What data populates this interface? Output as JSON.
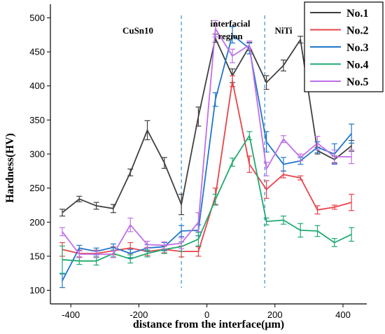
{
  "chart_data": {
    "type": "line",
    "title": "",
    "xlabel": "distance from the interface(μm)",
    "ylabel": "Hardness(HV)",
    "xlim": [
      -460,
      470
    ],
    "ylim": [
      80,
      520
    ],
    "xticks": [
      -400,
      -200,
      0,
      200,
      400
    ],
    "yticks": [
      100,
      150,
      200,
      250,
      300,
      350,
      400,
      450,
      500
    ],
    "x_tick_labels": [
      "-400",
      "-200",
      "0",
      "200",
      "400"
    ],
    "y_tick_labels": [
      "100",
      "150",
      "200",
      "250",
      "300",
      "350",
      "400",
      "450",
      "500"
    ],
    "grid": false,
    "legend_position": "top-right",
    "boundaries": [
      -75,
      170
    ],
    "annotations": [
      "CuSn10",
      "interfacial region",
      "NiTi"
    ],
    "x": [
      -425,
      -375,
      -325,
      -275,
      -225,
      -175,
      -125,
      -75,
      -25,
      25,
      75,
      125,
      175,
      225,
      275,
      325,
      375,
      425
    ],
    "series": [
      {
        "name": "No.1",
        "color": "#404040",
        "values": [
          214,
          234,
          224,
          220,
          273,
          335,
          287,
          226,
          355,
          470,
          415,
          458,
          405,
          430,
          468,
          305,
          292,
          312
        ],
        "errors": [
          5,
          4,
          5,
          6,
          5,
          14,
          8,
          15,
          14,
          6,
          10,
          6,
          10,
          8,
          5,
          5,
          5,
          8
        ]
      },
      {
        "name": "No.2",
        "color": "#e8444a",
        "values": [
          160,
          154,
          154,
          158,
          162,
          157,
          160,
          157,
          157,
          238,
          407,
          285,
          248,
          270,
          265,
          218,
          222,
          229
        ],
        "errors": [
          10,
          5,
          5,
          6,
          8,
          6,
          5,
          8,
          7,
          12,
          8,
          12,
          13,
          5,
          3,
          6,
          3,
          12
        ]
      },
      {
        "name": "No.3",
        "color": "#1f77c8",
        "values": [
          114,
          162,
          157,
          163,
          154,
          162,
          164,
          187,
          188,
          380,
          475,
          455,
          318,
          285,
          290,
          310,
          300,
          330
        ],
        "errors": [
          10,
          4,
          5,
          5,
          6,
          5,
          6,
          8,
          8,
          10,
          12,
          8,
          15,
          10,
          5,
          8,
          15,
          14
        ]
      },
      {
        "name": "No.4",
        "color": "#1faa70",
        "values": [
          145,
          143,
          143,
          154,
          146,
          154,
          160,
          164,
          175,
          233,
          288,
          327,
          201,
          203,
          188,
          187,
          170,
          182
        ],
        "errors": [
          20,
          5,
          6,
          5,
          6,
          5,
          6,
          7,
          10,
          8,
          6,
          6,
          5,
          6,
          10,
          8,
          6,
          10
        ]
      },
      {
        "name": "No.5",
        "color": "#c070e8",
        "values": [
          186,
          153,
          153,
          153,
          196,
          167,
          166,
          169,
          200,
          484,
          444,
          460,
          278,
          322,
          295,
          316,
          296,
          296
        ],
        "errors": [
          6,
          5,
          5,
          5,
          10,
          5,
          5,
          8,
          14,
          12,
          10,
          6,
          10,
          5,
          5,
          10,
          10,
          10
        ]
      }
    ]
  }
}
